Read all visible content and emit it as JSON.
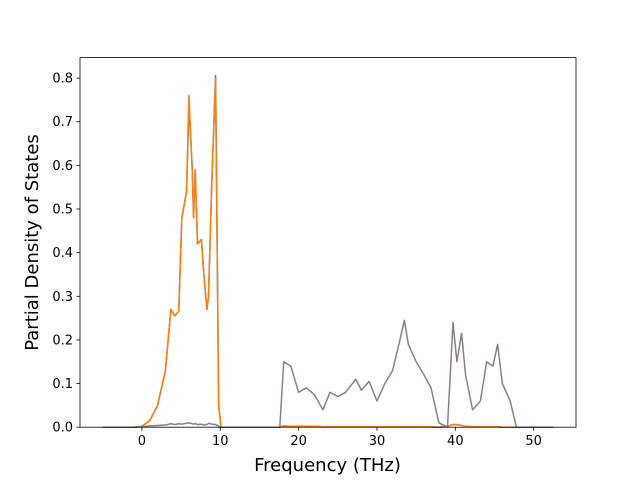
{
  "chart_data": {
    "type": "line",
    "xlabel": "Frequency (THz)",
    "ylabel": "Partial Density of States",
    "x": [
      -5,
      -1,
      0,
      1,
      2,
      3,
      3.7,
      4.2,
      4.7,
      5.1,
      5.7,
      6,
      6.4,
      6.6,
      6.8,
      7.1,
      7.6,
      7.9,
      8.3,
      8.5,
      8.9,
      9.4,
      9.8,
      10.1,
      12,
      17.6,
      18.1,
      19,
      20,
      21,
      22,
      23.1,
      24,
      25,
      26,
      27.3,
      28,
      29,
      30,
      31,
      32,
      32.8,
      33.5,
      34,
      35,
      36,
      36.9,
      37.9,
      39,
      39.7,
      40.2,
      40.8,
      41.3,
      42.2,
      43.2,
      44,
      44.8,
      45.4,
      46,
      47,
      47.8,
      52.5
    ],
    "series": [
      {
        "color": "#1f77b4",
        "values": [
          0,
          0,
          0.002,
          0.015,
          0.05,
          0.13,
          0.27,
          0.255,
          0.265,
          0.48,
          0.54,
          0.74,
          0.6,
          0.48,
          0.59,
          0.42,
          0.43,
          0.35,
          0.27,
          0.3,
          0.55,
          0.805,
          0.05,
          0,
          0,
          0,
          0.003,
          0.002,
          0.002,
          0.002,
          0.002,
          0.001,
          0.001,
          0.001,
          0.001,
          0.001,
          0.001,
          0.001,
          0.001,
          0.001,
          0.001,
          0.001,
          0.001,
          0.001,
          0.001,
          0.001,
          0.001,
          0,
          0.002,
          0.006,
          0.006,
          0.004,
          0.002,
          0.001,
          0.001,
          0.001,
          0.001,
          0.001,
          0,
          0,
          0,
          0
        ]
      },
      {
        "color": "#ff7f0e",
        "values": [
          0,
          0,
          0.002,
          0.015,
          0.05,
          0.13,
          0.27,
          0.255,
          0.265,
          0.48,
          0.54,
          0.76,
          0.6,
          0.48,
          0.59,
          0.42,
          0.43,
          0.35,
          0.27,
          0.3,
          0.55,
          0.8,
          0.05,
          0,
          0,
          0,
          0.003,
          0.002,
          0.002,
          0.002,
          0.002,
          0.001,
          0.001,
          0.001,
          0.001,
          0.001,
          0.001,
          0.001,
          0.001,
          0.001,
          0.001,
          0.001,
          0.001,
          0.001,
          0.001,
          0.001,
          0.001,
          0,
          0.002,
          0.006,
          0.006,
          0.004,
          0.002,
          0.001,
          0.001,
          0.001,
          0.001,
          0.001,
          0,
          0,
          0,
          0
        ]
      },
      {
        "color": "#8c7f88",
        "values": [
          0,
          0,
          0.001,
          0.003,
          0.004,
          0.005,
          0.008,
          0.006,
          0.008,
          0.007,
          0.009,
          0.01,
          0.008,
          0.007,
          0.008,
          0.006,
          0.007,
          0.005,
          0.006,
          0.009,
          0.007,
          0.006,
          0.002,
          0,
          0,
          0,
          0.15,
          0.14,
          0.08,
          0.09,
          0.075,
          0.04,
          0.08,
          0.07,
          0.08,
          0.11,
          0.085,
          0.105,
          0.06,
          0.1,
          0.13,
          0.19,
          0.245,
          0.19,
          0.15,
          0.12,
          0.09,
          0.01,
          0,
          0.24,
          0.15,
          0.215,
          0.12,
          0.04,
          0.06,
          0.15,
          0.14,
          0.19,
          0.1,
          0.06,
          0,
          0
        ]
      }
    ],
    "xlim": [
      -7.9,
      55.4
    ],
    "ylim": [
      0,
      0.847
    ],
    "xticks": [
      0,
      10,
      20,
      30,
      40,
      50
    ],
    "yticks": [
      {
        "value": 0,
        "label": "0.0"
      },
      0.1,
      0.2,
      0.3,
      0.4,
      0.5,
      0.6,
      0.7,
      0.8
    ]
  }
}
